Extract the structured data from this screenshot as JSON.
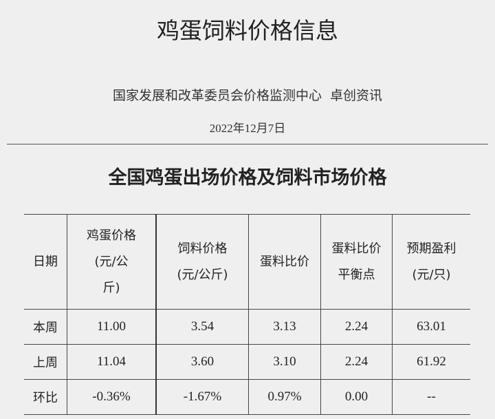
{
  "title": "鸡蛋饲料价格信息",
  "source": "国家发展和改革委员会价格监测中心  卓创资讯",
  "date": "2022年12月7日",
  "section_title": "全国鸡蛋出场价格及饲料市场价格",
  "table": {
    "headers": [
      "日期",
      "鸡蛋价格(元/公斤)",
      "饲料价格(元/公斤)",
      "蛋料比价",
      "蛋料比价平衡点",
      "预期盈利(元/只)"
    ],
    "header_lines": [
      [
        "日期"
      ],
      [
        "鸡蛋价格",
        "(元/公",
        "斤)"
      ],
      [
        "饲料价格",
        "(元/公斤)"
      ],
      [
        "蛋料比价"
      ],
      [
        "蛋料比价",
        "平衡点"
      ],
      [
        "预期盈利",
        "(元/只)"
      ]
    ],
    "rows": [
      [
        "本周",
        "11.00",
        "3.54",
        "3.13",
        "2.24",
        "63.01"
      ],
      [
        "上周",
        "11.04",
        "3.60",
        "3.10",
        "2.24",
        "61.92"
      ],
      [
        "环比",
        "-0.36%",
        "-1.67%",
        "0.97%",
        "0.00",
        "--"
      ]
    ]
  }
}
